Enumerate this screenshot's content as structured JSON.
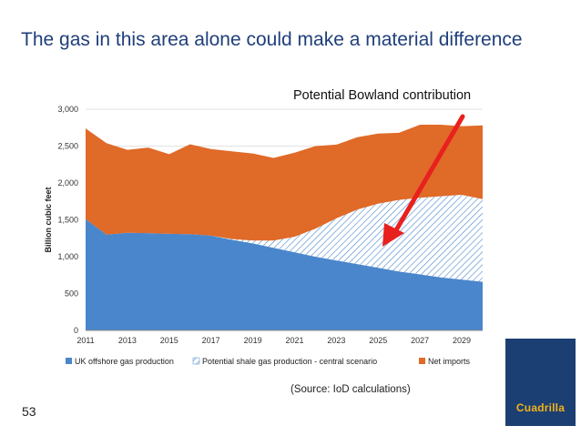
{
  "slide": {
    "title": "The gas in this area alone could make a material difference",
    "annotation": "Potential Bowland contribution",
    "source": "(Source: IoD calculations)",
    "slide_number": "53",
    "logo_text": "Cuadrilla"
  },
  "colors": {
    "title": "#1f3f7a",
    "uk_offshore": "#4a86cc",
    "shale_hatch": "#4a86cc",
    "net_imports": "#e06a28",
    "arrow": "#e8201e",
    "logo_bg": "#1b3f72",
    "logo_text": "#f2b21b"
  },
  "chart_data": {
    "type": "area",
    "stacked": true,
    "ylabel": "Billion cubic feet",
    "xlabel": "",
    "ylim": [
      0,
      3000
    ],
    "y_ticks": [
      0,
      500,
      1000,
      1500,
      2000,
      2500,
      3000
    ],
    "y_tick_labels": [
      "0",
      "500",
      "1,000",
      "1,500",
      "2,000",
      "2,500",
      "3,000"
    ],
    "x_tick_labels": [
      "2011",
      "2013",
      "2015",
      "2017",
      "2019",
      "2021",
      "2023",
      "2025",
      "2027",
      "2029"
    ],
    "x": [
      2011,
      2012,
      2013,
      2014,
      2015,
      2016,
      2017,
      2018,
      2019,
      2020,
      2021,
      2022,
      2023,
      2024,
      2025,
      2026,
      2027,
      2028,
      2029,
      2030
    ],
    "series": [
      {
        "name": "UK offshore gas production",
        "values": [
          1510,
          1300,
          1325,
          1320,
          1310,
          1305,
          1285,
          1230,
          1180,
          1120,
          1060,
          1000,
          950,
          900,
          850,
          800,
          760,
          720,
          690,
          660
        ]
      },
      {
        "name": "Potential shale gas production - central scenario",
        "values": [
          0,
          0,
          0,
          0,
          0,
          0,
          0,
          10,
          40,
          100,
          210,
          380,
          570,
          740,
          870,
          970,
          1040,
          1100,
          1150,
          1120
        ]
      },
      {
        "name": "Net imports",
        "values": [
          1230,
          1240,
          1125,
          1160,
          1080,
          1220,
          1175,
          1190,
          1180,
          1120,
          1140,
          1120,
          1000,
          980,
          950,
          910,
          990,
          970,
          930,
          1000
        ]
      }
    ],
    "legend_position": "bottom"
  }
}
